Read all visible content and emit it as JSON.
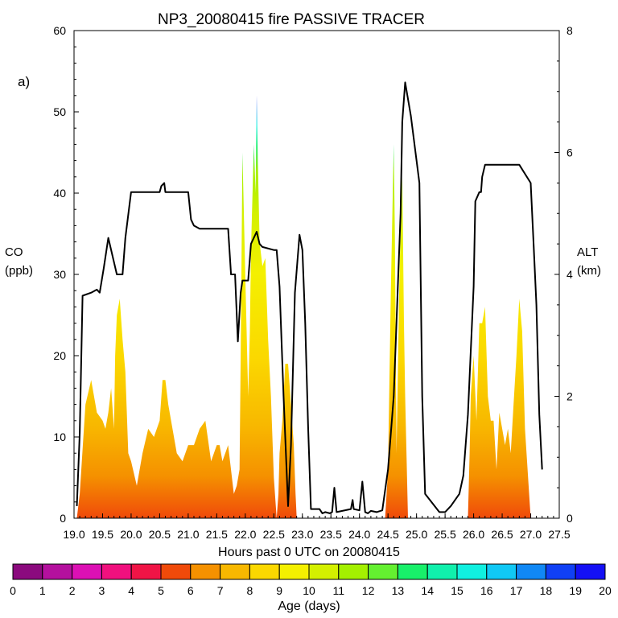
{
  "chart_data": {
    "type": "area",
    "title": "NP3_20080415 fire PASSIVE TRACER",
    "panel_label": "a)",
    "xlabel": "Hours past 0 UTC on 20080415",
    "ylabel_left": [
      "CO",
      "(ppb)"
    ],
    "ylabel_right": [
      "ALT",
      "(km)"
    ],
    "xlim": [
      19.0,
      27.5
    ],
    "ylim_left": [
      0,
      60
    ],
    "ylim_right": [
      0,
      8
    ],
    "x_ticks": [
      "19.0",
      "19.5",
      "20.0",
      "20.5",
      "21.0",
      "21.5",
      "22.0",
      "22.5",
      "23.0",
      "23.5",
      "24.0",
      "24.5",
      "25.0",
      "25.5",
      "26.0",
      "26.5",
      "27.0",
      "27.5"
    ],
    "y_ticks_left": [
      "0",
      "10",
      "20",
      "30",
      "40",
      "50",
      "60"
    ],
    "y_ticks_right": [
      "0",
      "2",
      "4",
      "6",
      "8"
    ],
    "grid": false,
    "colorbar": {
      "label": "Age (days)",
      "min": 0,
      "max": 20,
      "ticks": [
        "0",
        "1",
        "2",
        "3",
        "4",
        "5",
        "6",
        "7",
        "8",
        "9",
        "10",
        "11",
        "12",
        "13",
        "14",
        "15",
        "16",
        "17",
        "18",
        "19",
        "20"
      ],
      "colors": [
        "#8b0a7e",
        "#b4109e",
        "#dc10b4",
        "#f0107e",
        "#f01446",
        "#f04a0a",
        "#f59100",
        "#f8b800",
        "#fbd800",
        "#f4f000",
        "#d4f000",
        "#a4f000",
        "#64f030",
        "#18f06a",
        "#10f0ac",
        "#10f0e0",
        "#10c8f5",
        "#1088f5",
        "#1040f5",
        "#1410f5"
      ]
    },
    "series": [
      {
        "name": "Altitude",
        "axis": "right",
        "x": [
          19.05,
          19.1,
          19.15,
          19.3,
          19.4,
          19.45,
          19.52,
          19.6,
          19.75,
          19.85,
          19.9,
          20.0,
          20.5,
          20.53,
          20.58,
          20.6,
          21.0,
          21.05,
          21.1,
          21.2,
          21.7,
          21.75,
          21.82,
          21.87,
          21.92,
          21.95,
          22.05,
          22.1,
          22.2,
          22.25,
          22.3,
          22.5,
          22.55,
          22.6,
          22.67,
          22.75,
          22.8,
          22.87,
          22.95,
          23.0,
          23.05,
          23.1,
          23.15,
          23.3,
          23.35,
          23.4,
          23.48,
          23.52,
          23.56,
          23.6,
          23.85,
          23.88,
          23.9,
          24.0,
          24.05,
          24.1,
          24.15,
          24.2,
          24.3,
          24.4,
          24.5,
          24.6,
          24.72,
          24.75,
          24.8,
          24.9,
          25.05,
          25.1,
          25.15,
          25.4,
          25.5,
          25.6,
          25.75,
          25.82,
          25.9,
          26.0,
          26.03,
          26.1,
          26.13,
          26.15,
          26.2,
          26.3,
          26.42,
          26.45,
          26.8,
          27.0,
          27.05,
          27.1,
          27.15,
          27.2
        ],
        "y": [
          0.2,
          1.4,
          3.65,
          3.7,
          3.75,
          3.7,
          4.1,
          4.6,
          4.0,
          4.0,
          4.6,
          5.35,
          5.35,
          5.45,
          5.5,
          5.35,
          5.35,
          4.9,
          4.8,
          4.75,
          4.75,
          4.0,
          4.0,
          2.9,
          3.7,
          3.9,
          3.9,
          4.5,
          4.7,
          4.5,
          4.45,
          4.4,
          4.4,
          3.8,
          2.0,
          0.2,
          1.2,
          3.7,
          4.65,
          4.4,
          3.2,
          1.5,
          0.15,
          0.15,
          0.08,
          0.1,
          0.08,
          0.1,
          0.5,
          0.1,
          0.15,
          0.3,
          0.15,
          0.13,
          0.6,
          0.1,
          0.08,
          0.12,
          0.1,
          0.13,
          0.8,
          2.0,
          5.0,
          6.5,
          7.15,
          6.6,
          5.5,
          2.0,
          0.4,
          0.1,
          0.1,
          0.2,
          0.4,
          0.7,
          1.7,
          3.8,
          5.2,
          5.35,
          5.35,
          5.6,
          5.8,
          5.8,
          5.8,
          5.8,
          5.8,
          5.5,
          4.5,
          3.5,
          1.7,
          0.8
        ]
      },
      {
        "name": "CO",
        "axis": "left",
        "x": [
          19.05,
          19.1,
          19.2,
          19.3,
          19.4,
          19.5,
          19.55,
          19.6,
          19.65,
          19.7,
          19.72,
          19.75,
          19.8,
          19.85,
          19.9,
          19.95,
          20.0,
          20.1,
          20.2,
          20.3,
          20.4,
          20.5,
          20.55,
          20.6,
          20.65,
          20.7,
          20.8,
          20.9,
          21.0,
          21.1,
          21.2,
          21.3,
          21.4,
          21.5,
          21.55,
          21.6,
          21.7,
          21.8,
          21.85,
          21.9,
          21.92,
          21.95,
          22.0,
          22.05,
          22.08,
          22.1,
          22.15,
          22.18,
          22.2,
          22.22,
          22.25,
          22.3,
          22.35,
          22.4,
          22.45,
          22.5,
          22.55,
          22.58,
          22.6,
          22.65,
          22.7,
          22.75,
          22.8,
          22.85,
          22.88,
          22.9,
          22.95,
          23.0,
          23.05,
          24.45,
          24.5,
          24.55,
          24.6,
          24.62,
          24.65,
          24.7,
          24.75,
          24.78,
          24.8,
          24.85,
          24.9,
          24.95,
          25.0,
          25.9,
          25.93,
          25.95,
          26.0,
          26.05,
          26.1,
          26.15,
          26.2,
          26.25,
          26.3,
          26.35,
          26.4,
          26.45,
          26.5,
          26.55,
          26.6,
          26.65,
          26.7,
          26.75,
          26.8,
          26.85,
          26.9,
          27.0,
          27.05,
          27.1
        ],
        "y": [
          0,
          3,
          14,
          17,
          13,
          12,
          11,
          13,
          16,
          11,
          20,
          25,
          27,
          22,
          18,
          8,
          7,
          4,
          8,
          11,
          10,
          12,
          17,
          17,
          14,
          12,
          8,
          7,
          9,
          9,
          11,
          12,
          7,
          9,
          9,
          7,
          9,
          3,
          4,
          6,
          20,
          45,
          30,
          15,
          23,
          33,
          46,
          40,
          52,
          44,
          34,
          31,
          32,
          22,
          15,
          5,
          0,
          3,
          8,
          12,
          19,
          19,
          14,
          9,
          3,
          0,
          0,
          0,
          0,
          0,
          6,
          28,
          46,
          35,
          8,
          30,
          42,
          24,
          15,
          0,
          0,
          0,
          0,
          0,
          8,
          15,
          20,
          12,
          24,
          24,
          26,
          15,
          12,
          12,
          6,
          13,
          11,
          9,
          11,
          8,
          14,
          20,
          27,
          23,
          11,
          0,
          0,
          0
        ]
      }
    ]
  }
}
